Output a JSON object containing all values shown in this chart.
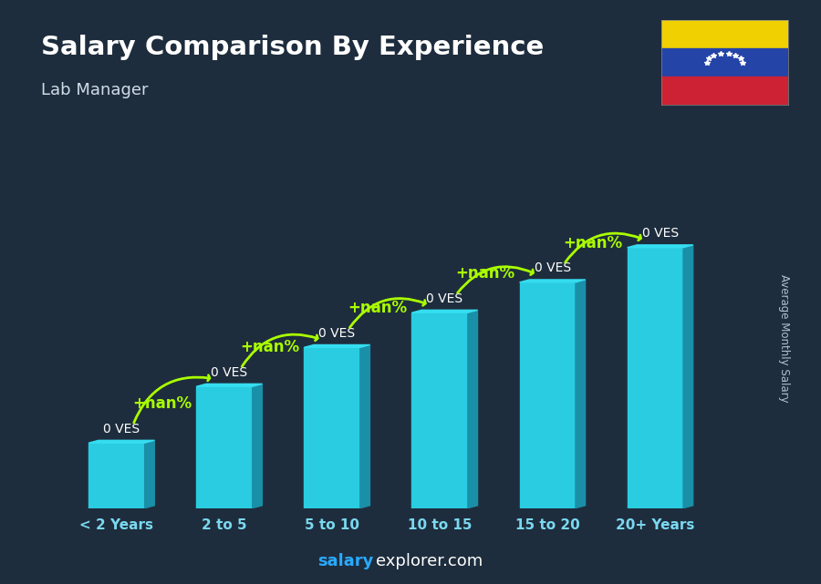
{
  "title": "Salary Comparison By Experience",
  "subtitle": "Lab Manager",
  "ylabel": "Average Monthly Salary",
  "categories": [
    "< 2 Years",
    "2 to 5",
    "5 to 10",
    "10 to 15",
    "15 to 20",
    "20+ Years"
  ],
  "bar_labels": [
    "0 VES",
    "0 VES",
    "0 VES",
    "0 VES",
    "0 VES",
    "0 VES"
  ],
  "pct_labels": [
    "+nan%",
    "+nan%",
    "+nan%",
    "+nan%",
    "+nan%"
  ],
  "heights": [
    1.5,
    2.8,
    3.7,
    4.5,
    5.2,
    6.0
  ],
  "bar_face_color": "#29cce0",
  "bar_side_color": "#1a8fa8",
  "bar_top_color": "#35ddf0",
  "bg_color": "#1e2d3d",
  "title_color": "#ffffff",
  "subtitle_color": "#d0dde8",
  "xlabel_color": "#7ad8f0",
  "label_color": "#ffffff",
  "pct_color": "#aaff00",
  "arrow_color": "#aaff00",
  "ylabel_color": "#b0c0d0",
  "footer_salary_color": "#29aaff",
  "footer_explorer_color": "#ffffff",
  "flag_yellow": "#f0d000",
  "flag_blue": "#2444a8",
  "flag_red": "#cc2233"
}
